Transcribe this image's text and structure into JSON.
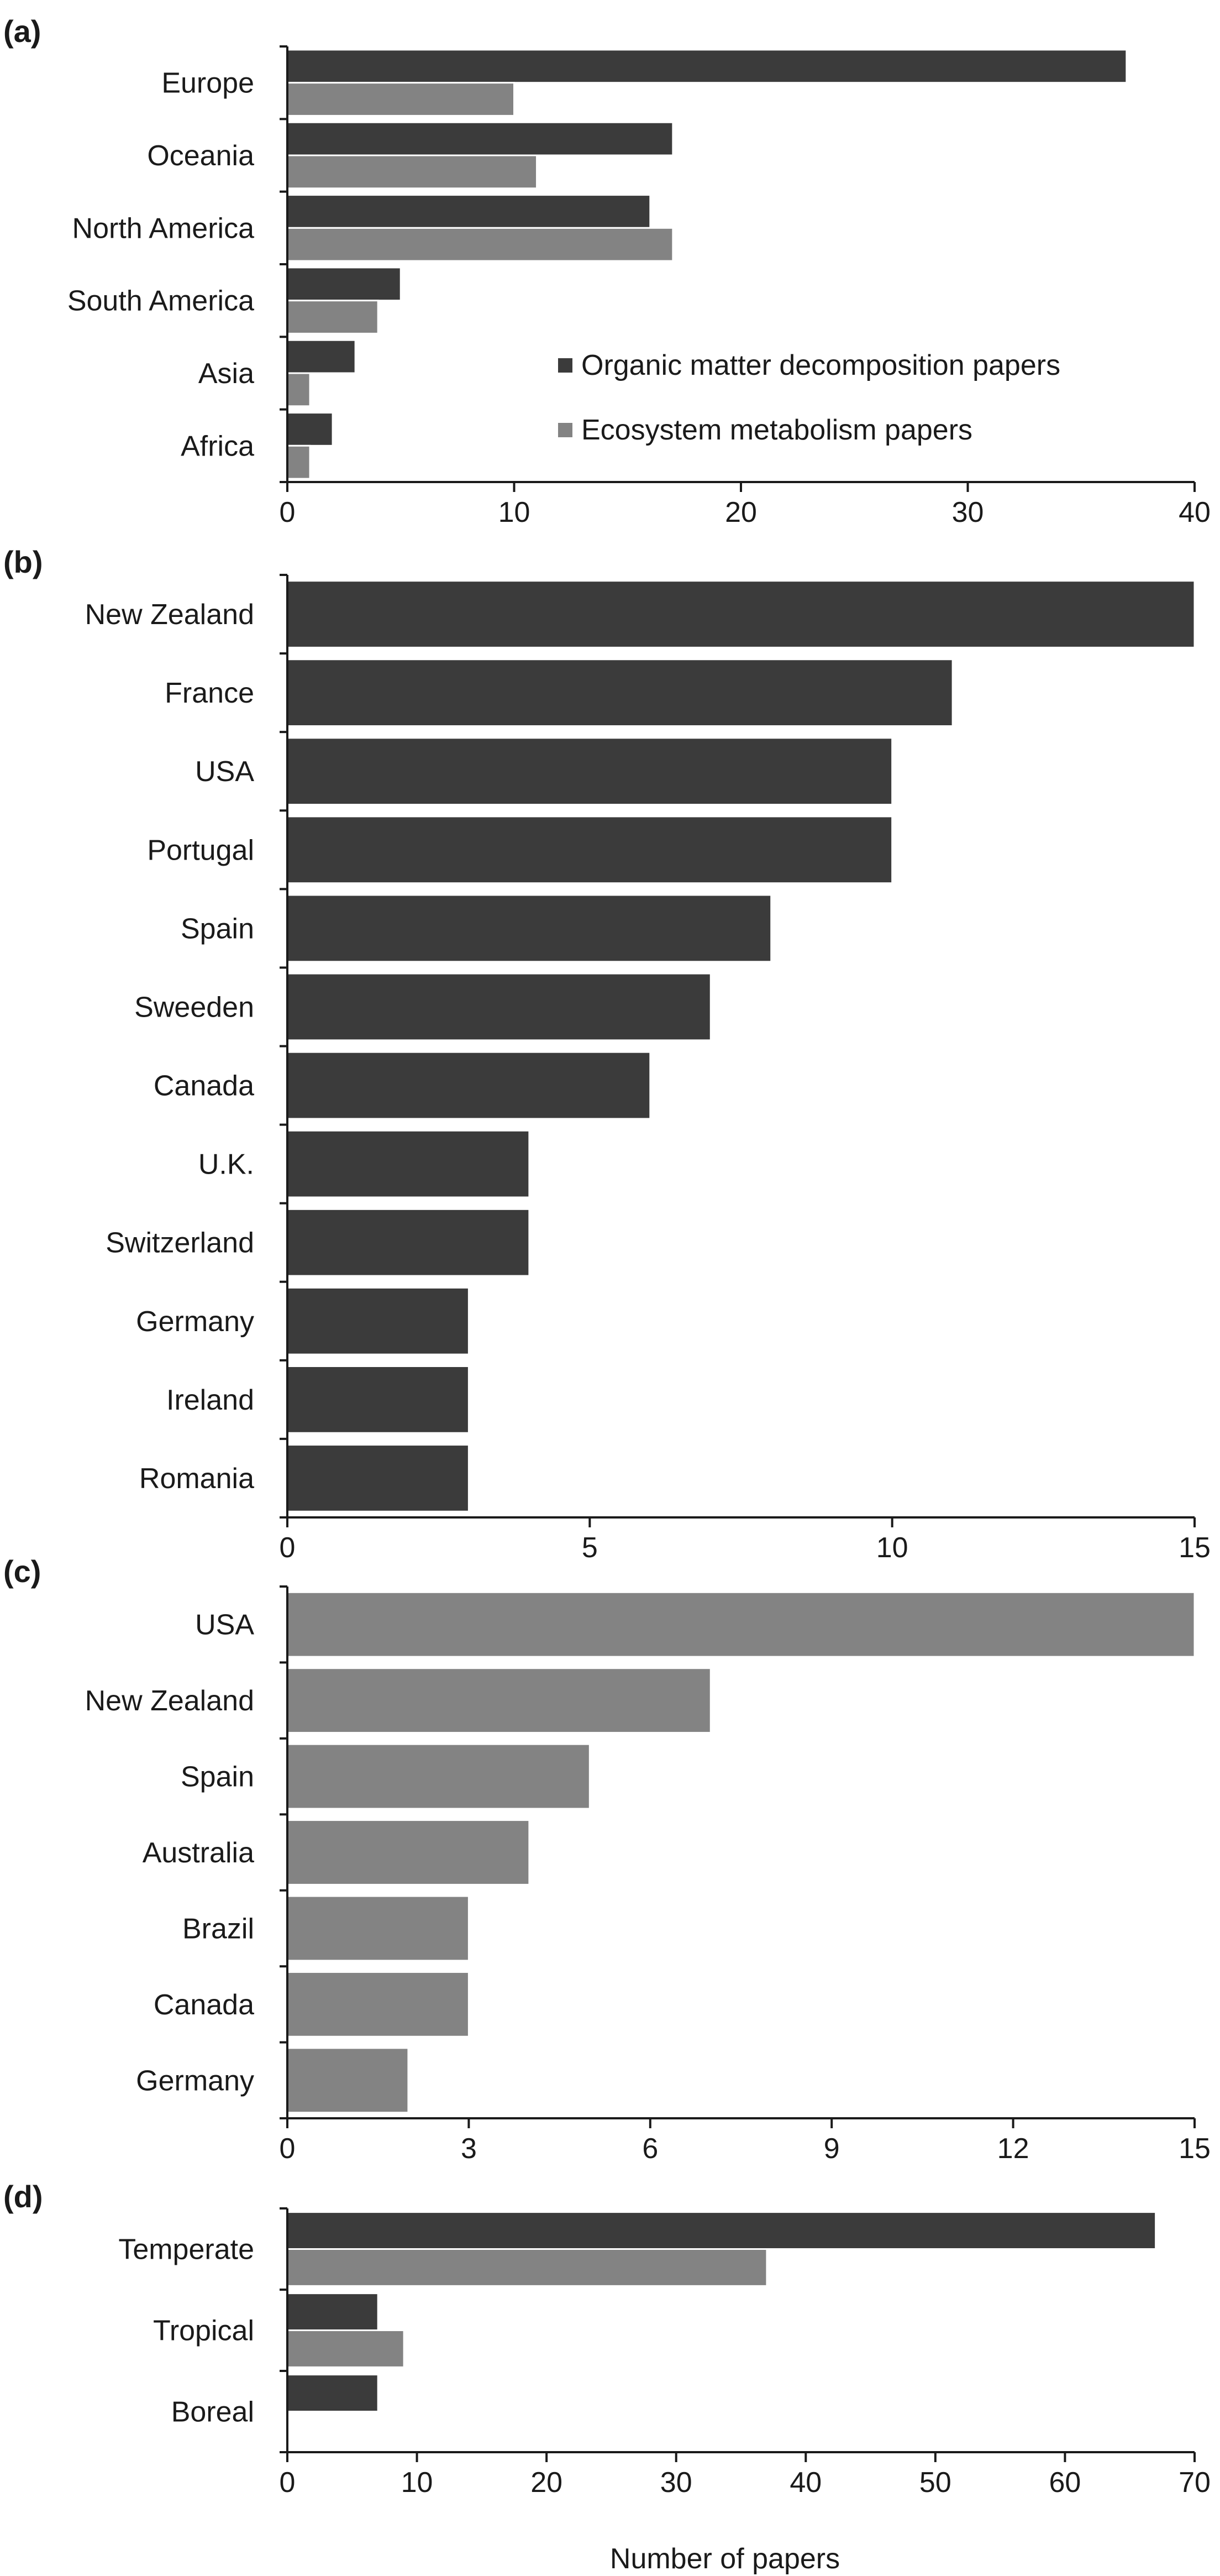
{
  "colors": {
    "organic": "#3b3b3b",
    "metabolism": "#838383",
    "axis": "#1a1a1a",
    "background": "#ffffff"
  },
  "legend": {
    "organic": "Organic matter decomposition papers",
    "metabolism": "Ecosystem metabolism papers"
  },
  "xlabel": "Number of papers",
  "chart_data": [
    {
      "panel": "(a)",
      "type": "bar",
      "orientation": "horizontal",
      "categories": [
        "Europe",
        "Oceania",
        "North America",
        "South America",
        "Asia",
        "Africa"
      ],
      "series": [
        {
          "name": "Organic matter decomposition papers",
          "values": [
            37,
            17,
            16,
            5,
            3,
            2
          ]
        },
        {
          "name": "Ecosystem metabolism papers",
          "values": [
            10,
            11,
            17,
            4,
            1,
            1
          ]
        }
      ],
      "xlim": [
        0,
        40
      ],
      "xticks": [
        "0",
        "10",
        "20",
        "30",
        "40"
      ],
      "legend_position": "bottom-right"
    },
    {
      "panel": "(b)",
      "type": "bar",
      "orientation": "horizontal",
      "categories": [
        "New Zealand",
        "France",
        "USA",
        "Portugal",
        "Spain",
        "Sweeden",
        "Canada",
        "U.K.",
        "Switzerland",
        "Germany",
        "Ireland",
        "Romania"
      ],
      "series": [
        {
          "values": [
            15,
            11,
            10,
            10,
            8,
            7,
            6,
            4,
            4,
            3,
            3,
            3
          ]
        }
      ],
      "xlim": [
        0,
        15
      ],
      "xticks": [
        "0",
        "5",
        "10",
        "15"
      ]
    },
    {
      "panel": "(c)",
      "type": "bar",
      "orientation": "horizontal",
      "categories": [
        "USA",
        "New Zealand",
        "Spain",
        "Australia",
        "Brazil",
        "Canada",
        "Germany"
      ],
      "series": [
        {
          "values": [
            15,
            7,
            5,
            4,
            3,
            3,
            2
          ]
        }
      ],
      "xlim": [
        0,
        15
      ],
      "xticks": [
        "0",
        "3",
        "6",
        "9",
        "12",
        "15"
      ]
    },
    {
      "panel": "(d)",
      "type": "bar",
      "orientation": "horizontal",
      "categories": [
        "Temperate",
        "Tropical",
        "Boreal"
      ],
      "series": [
        {
          "name": "Organic matter decomposition papers",
          "values": [
            67,
            7,
            7
          ]
        },
        {
          "name": "Ecosystem metabolism papers",
          "values": [
            37,
            9,
            0
          ]
        }
      ],
      "xlim": [
        0,
        70
      ],
      "xticks": [
        "0",
        "10",
        "20",
        "30",
        "40",
        "50",
        "60",
        "70"
      ],
      "xlabel": "Number of papers"
    }
  ]
}
